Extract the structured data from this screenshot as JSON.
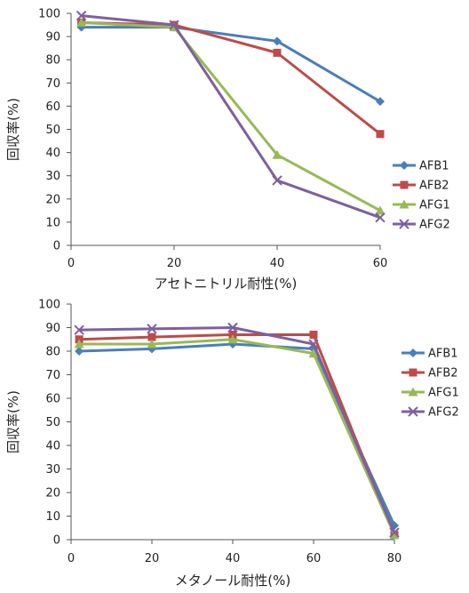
{
  "colors": {
    "AFB1": "#4a7ebb",
    "AFB2": "#be4b48",
    "AFG1": "#98b954",
    "AFG2": "#7d60a0",
    "axis": "#555555"
  },
  "chart_data": [
    {
      "type": "line",
      "xlabel": "アセトニトリル耐性(%)",
      "ylabel": "回収率(%)",
      "xlim": [
        0,
        60
      ],
      "ylim": [
        0,
        100
      ],
      "x_ticks": [
        "0",
        "20",
        "40",
        "60"
      ],
      "y_ticks": [
        "0",
        "10",
        "20",
        "30",
        "40",
        "50",
        "60",
        "70",
        "80",
        "90",
        "100"
      ],
      "grid": false,
      "legend_position": "right",
      "x": [
        2,
        20,
        40,
        60
      ],
      "series": [
        {
          "name": "AFB1",
          "marker": "diamond",
          "values": [
            94,
            94,
            88,
            62
          ]
        },
        {
          "name": "AFB2",
          "marker": "square",
          "values": [
            96,
            95,
            83,
            48
          ]
        },
        {
          "name": "AFG1",
          "marker": "triangle",
          "values": [
            96,
            94,
            39,
            15
          ]
        },
        {
          "name": "AFG2",
          "marker": "x",
          "values": [
            99,
            95,
            28,
            12
          ]
        }
      ]
    },
    {
      "type": "line",
      "xlabel": "メタノール耐性(%)",
      "ylabel": "回収率(%)",
      "xlim": [
        0,
        80
      ],
      "ylim": [
        0,
        100
      ],
      "x_ticks": [
        "0",
        "20",
        "40",
        "60",
        "80"
      ],
      "y_ticks": [
        "0",
        "10",
        "20",
        "30",
        "40",
        "50",
        "60",
        "70",
        "80",
        "90",
        "100"
      ],
      "grid": false,
      "legend_position": "right",
      "x": [
        2,
        20,
        40,
        60,
        80
      ],
      "series": [
        {
          "name": "AFB1",
          "marker": "diamond",
          "values": [
            80,
            81,
            83,
            81,
            6
          ]
        },
        {
          "name": "AFB2",
          "marker": "square",
          "values": [
            85,
            86,
            87,
            87,
            2
          ]
        },
        {
          "name": "AFG1",
          "marker": "triangle",
          "values": [
            83,
            83,
            85,
            79,
            2
          ]
        },
        {
          "name": "AFG2",
          "marker": "x",
          "values": [
            89,
            89.5,
            90,
            83,
            3
          ]
        }
      ]
    }
  ]
}
